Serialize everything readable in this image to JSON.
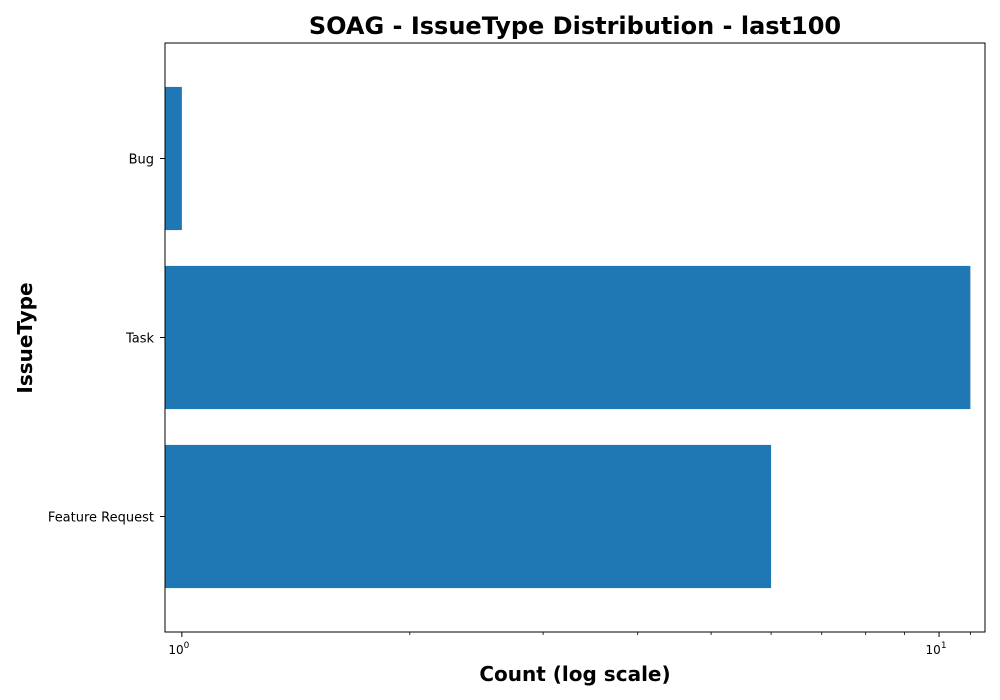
{
  "chart_data": {
    "type": "bar",
    "orientation": "horizontal",
    "title": "SOAG - IssueType Distribution - last100",
    "xlabel": "Count (log scale)",
    "ylabel": "IssueType",
    "x_scale": "log",
    "xlim": [
      0.95,
      11.5
    ],
    "categories": [
      "Bug",
      "Task",
      "Feature Request"
    ],
    "values": [
      1,
      11,
      6
    ],
    "x_ticks": [
      {
        "base": "10",
        "exp": "0",
        "value": 1
      },
      {
        "base": "10",
        "exp": "1",
        "value": 10
      }
    ],
    "minor_ticks": [
      2,
      3,
      4,
      5,
      6,
      7,
      8,
      9
    ],
    "bar_color": "#1f77b4",
    "grid": false,
    "legend": "none"
  }
}
